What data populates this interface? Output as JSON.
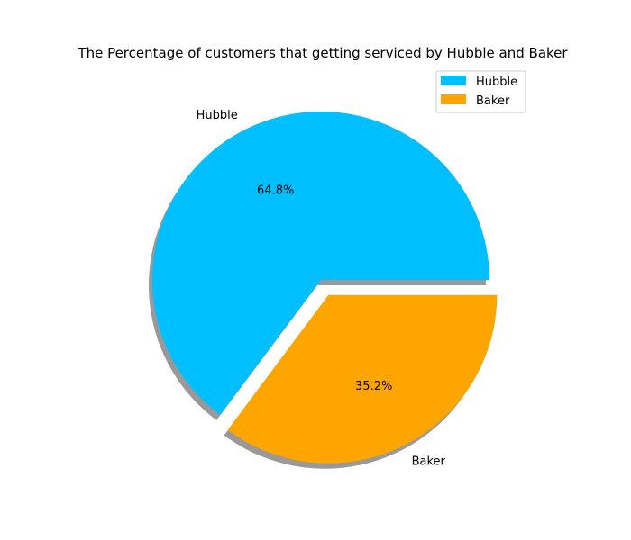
{
  "chart_data": {
    "type": "pie",
    "title": "The Percentage of customers that getting serviced by Hubble and Baker",
    "categories": [
      "Hubble",
      "Baker"
    ],
    "values": [
      64.8,
      35.2
    ],
    "percent_labels": [
      "64.8%",
      "35.2%"
    ],
    "colors": [
      "#00bfff",
      "#ffa500"
    ],
    "explode": [
      0,
      0.1
    ],
    "shadow": true,
    "start_angle_deg": 0,
    "legend": {
      "position": "top-right",
      "entries": [
        "Hubble",
        "Baker"
      ]
    }
  }
}
